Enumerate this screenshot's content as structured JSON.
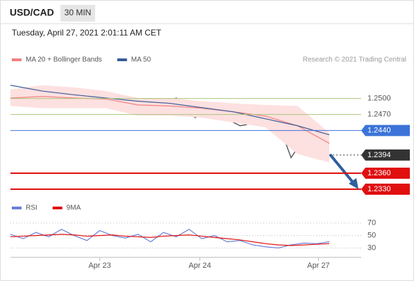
{
  "header": {
    "symbol": "USD/CAD",
    "interval": "30 MIN",
    "timestamp": "Tuesday, April 27, 2021 2:01:11 AM CET",
    "credit": "Research © 2021 Trading Central"
  },
  "chart_data": [
    {
      "type": "line",
      "xlim": [
        0,
        55
      ],
      "ylim": [
        1.2313,
        1.2587
      ],
      "series": [
        {
          "color": "#555555",
          "x": [
            0,
            1,
            2,
            3,
            4,
            5,
            6,
            7,
            8,
            9,
            10,
            11,
            12,
            13,
            14,
            15,
            16,
            17,
            18,
            19,
            20,
            21,
            22,
            23,
            24,
            25,
            26,
            27,
            28,
            29,
            30,
            31,
            32,
            33,
            34,
            35,
            36,
            37,
            38,
            39,
            40,
            41,
            42,
            43,
            44,
            45,
            46,
            47,
            48,
            49,
            50
          ],
          "values": [
            1.2501,
            1.2497,
            1.2493,
            1.2495,
            1.2486,
            1.2499,
            1.2501,
            1.2505,
            1.2512,
            1.2514,
            1.2488,
            1.2491,
            1.2497,
            1.2501,
            1.2503,
            1.2499,
            1.2493,
            1.2488,
            1.2479,
            1.248,
            1.2482,
            1.2484,
            1.2488,
            1.2486,
            1.2491,
            1.2493,
            1.2501,
            1.2482,
            1.2471,
            1.2464,
            1.2475,
            1.2478,
            1.2475,
            1.248,
            1.2468,
            1.2455,
            1.2449,
            1.2451,
            1.2462,
            1.2464,
            1.2455,
            1.2442,
            1.2438,
            1.2422,
            1.2389,
            1.2407,
            1.2404,
            1.2399,
            1.2396,
            1.2393,
            1.2394
          ]
        },
        {
          "name": "MA 20 + Bollinger Bands",
          "color": "#f08080",
          "band_color": "#fde0e0",
          "x": [
            0,
            5,
            10,
            15,
            20,
            25,
            30,
            35,
            40,
            45,
            50
          ],
          "values": [
            1.2501,
            1.2504,
            1.2501,
            1.2499,
            1.2488,
            1.2486,
            1.2482,
            1.2475,
            1.2467,
            1.2449,
            1.2416
          ],
          "upper": [
            1.2517,
            1.2525,
            1.2521,
            1.2514,
            1.2501,
            1.2501,
            1.2495,
            1.2491,
            1.2488,
            1.2486,
            1.2436
          ],
          "lower": [
            1.2486,
            1.2482,
            1.2482,
            1.2482,
            1.2468,
            1.2468,
            1.2464,
            1.2455,
            1.2446,
            1.2396,
            1.238
          ]
        },
        {
          "name": "MA 50",
          "color": "#3a5a98",
          "x": [
            0,
            5,
            10,
            15,
            20,
            25,
            30,
            35,
            40,
            45,
            50
          ],
          "values": [
            1.2525,
            1.2514,
            1.2507,
            1.2501,
            1.2495,
            1.2491,
            1.2483,
            1.2475,
            1.2462,
            1.2449,
            1.2432
          ]
        }
      ],
      "levels": [
        {
          "value": 1.25,
          "label": "1.2500",
          "color": "#a8c77a",
          "style": "solid"
        },
        {
          "value": 1.247,
          "label": "1.2470",
          "color": "#a8c77a",
          "style": "solid"
        },
        {
          "value": 1.244,
          "label": "1.2440",
          "color": "#3b73d9",
          "style": "solid"
        },
        {
          "value": 1.2394,
          "label": "1.2394",
          "color": "#333333",
          "style": "dotted"
        },
        {
          "value": 1.236,
          "label": "1.2360",
          "color": "#e01010",
          "style": "solid"
        },
        {
          "value": 1.233,
          "label": "1.2330",
          "color": "#e01010",
          "style": "solid"
        }
      ]
    },
    {
      "type": "line",
      "xlim": [
        0,
        55
      ],
      "ylim": [
        15,
        82
      ],
      "yticks": [
        70,
        50,
        30
      ],
      "xticks": [
        {
          "value": 14,
          "label": "Apr 23"
        },
        {
          "value": 29.7,
          "label": "Apr 24"
        },
        {
          "value": 48.3,
          "label": "Apr 27"
        }
      ],
      "series": [
        {
          "name": "RSI",
          "color": "#6a7fd8",
          "x": [
            0,
            2,
            4,
            6,
            8,
            10,
            12,
            14,
            16,
            18,
            20,
            22,
            24,
            26,
            28,
            30,
            32,
            34,
            36,
            38,
            40,
            42,
            44,
            46,
            48,
            50
          ],
          "values": [
            52,
            45,
            55,
            48,
            60,
            50,
            42,
            58,
            50,
            46,
            52,
            40,
            55,
            48,
            60,
            45,
            50,
            40,
            42,
            35,
            32,
            30,
            35,
            38,
            37,
            40
          ]
        },
        {
          "name": "9MA",
          "color": "#e01010",
          "x": [
            0,
            2,
            4,
            6,
            8,
            10,
            12,
            14,
            16,
            18,
            20,
            22,
            24,
            26,
            28,
            30,
            32,
            34,
            36,
            38,
            40,
            42,
            44,
            46,
            48,
            50
          ],
          "values": [
            48,
            49,
            50,
            51,
            52,
            51,
            49,
            50,
            51,
            49,
            48,
            47,
            49,
            50,
            51,
            49,
            47,
            45,
            43,
            40,
            37,
            35,
            34,
            35,
            36,
            37
          ]
        }
      ]
    }
  ]
}
